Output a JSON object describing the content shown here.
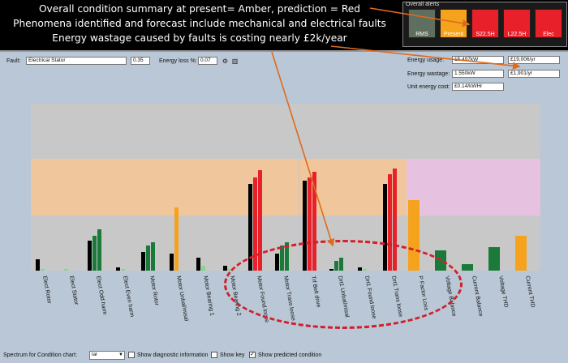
{
  "banner": {
    "line1": "Overall condition summary at present= Amber, prediction = Red",
    "line2": "Phenomena identified and forecast include mechanical and electrical faults",
    "line3": "Energy wastage caused by faults is costing nearly £2k/year"
  },
  "alerts": {
    "title": "Overall alerts",
    "items": [
      {
        "label": "RMS",
        "color": "#5f6f5f"
      },
      {
        "label": "Present",
        "color": "#f5a21d"
      },
      {
        "label": "S22.5H",
        "color": "#e8202a"
      },
      {
        "label": "L22.5H",
        "color": "#e8202a"
      },
      {
        "label": "Elec",
        "color": "#e8202a"
      }
    ]
  },
  "controls": {
    "fault_label": "Fault:",
    "fault_value": "Electrical Stator",
    "fault_score": "0.35",
    "energy_loss_label": "Energy loss %:",
    "energy_loss_value": "0.07",
    "energy_usage_label": "Energy usage:",
    "energy_usage_kw": "15.497kW",
    "energy_usage_cost": "£19,006/yr",
    "energy_wastage_label": "Energy wastage:",
    "energy_wastage_kw": "1.550kW",
    "energy_wastage_cost": "£1,901/yr",
    "unit_cost_label": "Unit energy cost:",
    "unit_cost_value": "£0.14/kWHr"
  },
  "bottom": {
    "spectrum_label": "Spectrum for Condition chart:",
    "spectrum_value": "lar",
    "show_diag": "Show diagnostic information",
    "show_key": "Show key",
    "show_pred": "Show predicted condition"
  },
  "colors": {
    "black": "#000000",
    "green": "#1b7a3a",
    "light_green": "#86d68c",
    "amber": "#f5a21d",
    "red": "#e8202a",
    "band_grey": "#c8c8c8",
    "band_peach": "#f0c79c",
    "band_pink": "#e7c2e0"
  },
  "chart_data": {
    "type": "bar",
    "title": "",
    "xlabel": "",
    "ylabel": "",
    "ylim": [
      0,
      100
    ],
    "zones": [
      "normal",
      "amber",
      "alarm"
    ],
    "categories": [
      {
        "label": "Elect Rotor",
        "values": [
          {
            "kind": "black",
            "v": 7
          },
          {
            "kind": "light_green",
            "v": 1
          }
        ]
      },
      {
        "label": "Elect Stator",
        "values": [
          {
            "kind": "light_green",
            "v": 1
          }
        ]
      },
      {
        "label": "Elect Odd harm",
        "values": [
          {
            "kind": "black",
            "v": 18
          },
          {
            "kind": "green",
            "v": 21
          },
          {
            "kind": "green",
            "v": 25
          }
        ]
      },
      {
        "label": "Elect Even harm",
        "values": [
          {
            "kind": "black",
            "v": 2
          },
          {
            "kind": "light_green",
            "v": 1
          }
        ]
      },
      {
        "label": "Motor Rotor",
        "values": [
          {
            "kind": "black",
            "v": 11
          },
          {
            "kind": "green",
            "v": 15
          },
          {
            "kind": "green",
            "v": 17
          }
        ]
      },
      {
        "label": "Motor Unbal/misal",
        "values": [
          {
            "kind": "black",
            "v": 10
          },
          {
            "kind": "amber",
            "v": 38
          }
        ]
      },
      {
        "label": "Motor Bearing 1",
        "values": [
          {
            "kind": "black",
            "v": 8
          },
          {
            "kind": "light_green",
            "v": 3
          }
        ]
      },
      {
        "label": "Motor Bearing 2",
        "values": [
          {
            "kind": "black",
            "v": 3
          },
          {
            "kind": "light_green",
            "v": 1
          }
        ]
      },
      {
        "label": "Motor Found loose",
        "values": [
          {
            "kind": "black",
            "v": 52
          },
          {
            "kind": "red",
            "v": 56
          },
          {
            "kind": "red",
            "v": 60
          }
        ]
      },
      {
        "label": "Motor Trans loose",
        "values": [
          {
            "kind": "black",
            "v": 10
          },
          {
            "kind": "green",
            "v": 15
          },
          {
            "kind": "green",
            "v": 17
          }
        ]
      },
      {
        "label": "Trf Belt drive",
        "values": [
          {
            "kind": "black",
            "v": 54
          },
          {
            "kind": "red",
            "v": 56
          },
          {
            "kind": "red",
            "v": 59
          }
        ]
      },
      {
        "label": "Drt1 Unbal/misal",
        "values": [
          {
            "kind": "black",
            "v": 1
          },
          {
            "kind": "green",
            "v": 6
          },
          {
            "kind": "green",
            "v": 8
          }
        ]
      },
      {
        "label": "Drt1 Found loose",
        "values": [
          {
            "kind": "black",
            "v": 2
          },
          {
            "kind": "light_green",
            "v": 1
          }
        ]
      },
      {
        "label": "Drt1 Trans loose",
        "values": [
          {
            "kind": "black",
            "v": 52
          },
          {
            "kind": "red",
            "v": 58
          },
          {
            "kind": "red",
            "v": 61
          }
        ]
      },
      {
        "label": "P Factor Loss",
        "values": [
          {
            "kind": "amber",
            "v": 42
          }
        ]
      },
      {
        "label": "Voltage Balance",
        "values": [
          {
            "kind": "green",
            "v": 12
          }
        ]
      },
      {
        "label": "Current Balance",
        "values": [
          {
            "kind": "green",
            "v": 4
          }
        ]
      },
      {
        "label": "Voltage THD",
        "values": [
          {
            "kind": "green",
            "v": 14
          }
        ]
      },
      {
        "label": "Current THD",
        "values": [
          {
            "kind": "amber",
            "v": 21
          }
        ]
      }
    ]
  }
}
